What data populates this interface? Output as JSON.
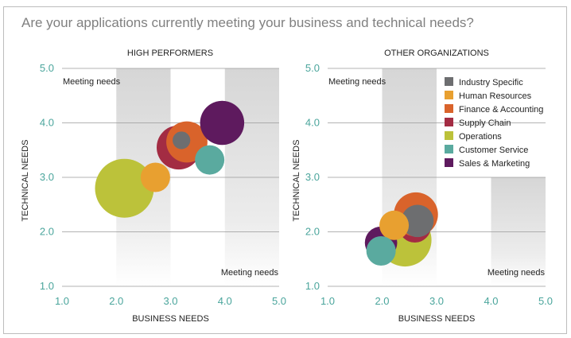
{
  "page": {
    "question": "Are your applications currently meeting your business and technical needs?"
  },
  "legend": [
    {
      "name": "Industry Specific",
      "color": "#6d6e70"
    },
    {
      "name": "Human Resources",
      "color": "#e8a030"
    },
    {
      "name": "Finance & Accounting",
      "color": "#d9632b"
    },
    {
      "name": "Supply Chain",
      "color": "#a32c43"
    },
    {
      "name": "Operations",
      "color": "#bcc23a"
    },
    {
      "name": "Customer Service",
      "color": "#5aaa9f"
    },
    {
      "name": "Sales & Marketing",
      "color": "#5e1a5e"
    }
  ],
  "chart_data": [
    {
      "type": "scatter",
      "title": "HIGH PERFORMERS",
      "xlabel": "BUSINESS NEEDS",
      "ylabel": "TECHNICAL NEEDS",
      "xlim": [
        1.0,
        5.0
      ],
      "ylim": [
        1.0,
        5.0
      ],
      "xticks": [
        "1.0",
        "2.0",
        "3.0",
        "4.0",
        "5.0"
      ],
      "yticks": [
        "1.0",
        "2.0",
        "3.0",
        "4.0",
        "5.0"
      ],
      "shaded_bands": [
        {
          "x0": 2.0,
          "x1": 3.0,
          "y0": 1.0,
          "y1": 5.0,
          "label": "Meeting needs",
          "label_pos": "top-left"
        },
        {
          "x0": 4.0,
          "x1": 5.0,
          "y0": 1.0,
          "y1": 5.0,
          "label": "Meeting needs",
          "label_pos": "bottom-right"
        }
      ],
      "points": [
        {
          "series": "Operations",
          "x": 2.15,
          "y": 2.8,
          "size": 1.0
        },
        {
          "series": "Human Resources",
          "x": 2.72,
          "y": 3.0,
          "size": 0.5
        },
        {
          "series": "Supply Chain",
          "x": 3.15,
          "y": 3.55,
          "size": 0.75
        },
        {
          "series": "Finance & Accounting",
          "x": 3.3,
          "y": 3.65,
          "size": 0.7
        },
        {
          "series": "Industry Specific",
          "x": 3.2,
          "y": 3.68,
          "size": 0.3
        },
        {
          "series": "Customer Service",
          "x": 3.72,
          "y": 3.32,
          "size": 0.5
        },
        {
          "series": "Sales & Marketing",
          "x": 3.95,
          "y": 4.0,
          "size": 0.75
        }
      ]
    },
    {
      "type": "scatter",
      "title": "OTHER ORGANIZATIONS",
      "xlabel": "BUSINESS NEEDS",
      "ylabel": "TECHNICAL NEEDS",
      "xlim": [
        1.0,
        5.0
      ],
      "ylim": [
        1.0,
        5.0
      ],
      "xticks": [
        "1.0",
        "2.0",
        "3.0",
        "4.0",
        "5.0"
      ],
      "yticks": [
        "1.0",
        "2.0",
        "3.0",
        "4.0",
        "5.0"
      ],
      "shaded_bands": [
        {
          "x0": 2.0,
          "x1": 3.0,
          "y0": 1.0,
          "y1": 5.0,
          "label": "Meeting needs",
          "label_pos": "top-left"
        },
        {
          "x0": 4.0,
          "x1": 5.0,
          "y0": 1.0,
          "y1": 3.0,
          "label": "Meeting needs",
          "label_pos": "bottom-right"
        }
      ],
      "points": [
        {
          "series": "Operations",
          "x": 2.42,
          "y": 1.85,
          "size": 0.9
        },
        {
          "series": "Sales & Marketing",
          "x": 1.98,
          "y": 1.8,
          "size": 0.55
        },
        {
          "series": "Supply Chain",
          "x": 2.6,
          "y": 2.1,
          "size": 0.55
        },
        {
          "series": "Finance & Accounting",
          "x": 2.62,
          "y": 2.32,
          "size": 0.75
        },
        {
          "series": "Industry Specific",
          "x": 2.65,
          "y": 2.2,
          "size": 0.55
        },
        {
          "series": "Human Resources",
          "x": 2.22,
          "y": 2.12,
          "size": 0.5
        },
        {
          "series": "Customer Service",
          "x": 1.98,
          "y": 1.65,
          "size": 0.5
        }
      ]
    }
  ]
}
